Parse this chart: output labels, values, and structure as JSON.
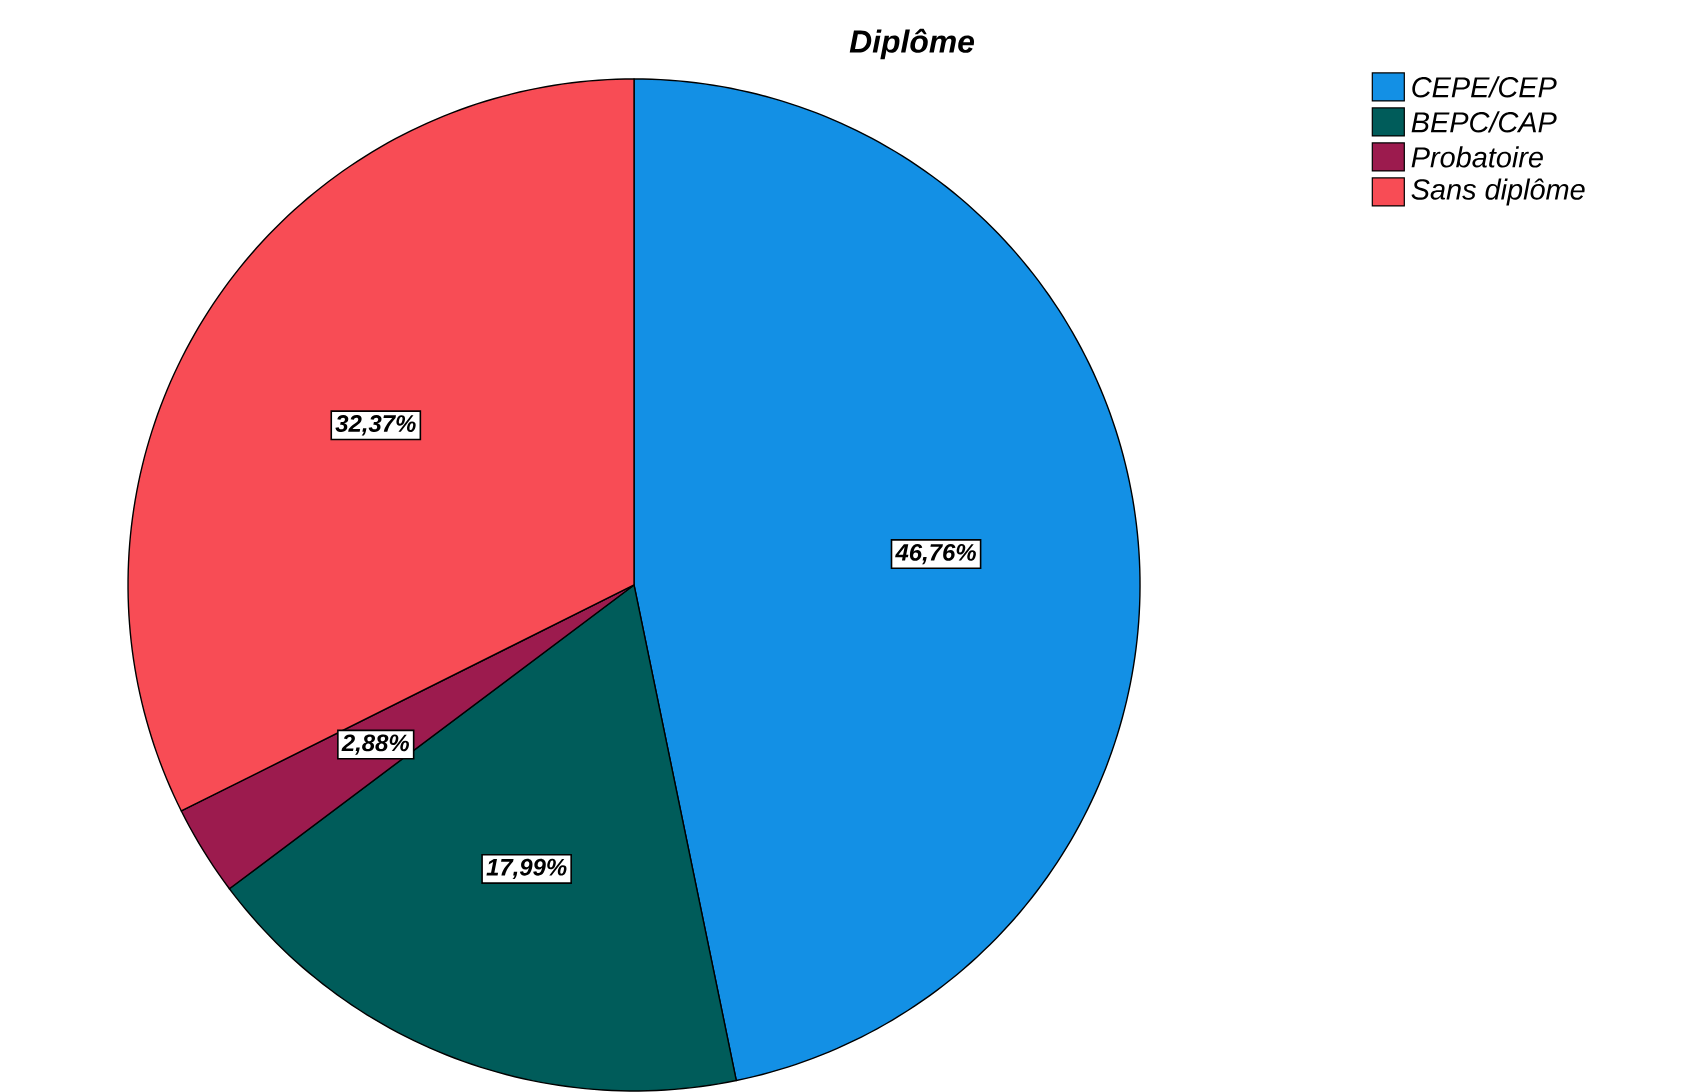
{
  "chart_data": {
    "type": "pie",
    "title": "Diplôme",
    "categories": [
      "CEPE/CEP",
      "BEPC/CAP",
      "Probatoire",
      "Sans diplôme"
    ],
    "values": [
      46.76,
      17.99,
      2.88,
      32.37
    ],
    "colors": [
      "#1390e5",
      "#005c5a",
      "#9c1b4e",
      "#f84c55"
    ],
    "value_labels": [
      "46,76%",
      "17,99%",
      "2,88%",
      "32,37%"
    ],
    "legend": "top right"
  }
}
